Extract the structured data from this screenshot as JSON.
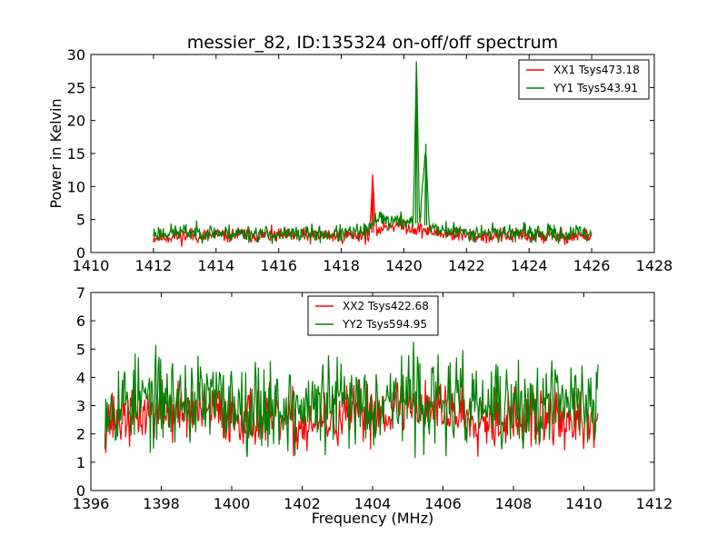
{
  "chart_data": [
    {
      "type": "line",
      "title": "messier_82, ID:135324 on-off/off spectrum",
      "xlabel": "",
      "ylabel": "Power in Kelvin",
      "xlim": [
        1410,
        1428
      ],
      "ylim": [
        0,
        30
      ],
      "x_ticks": [
        "1410",
        "1412",
        "1414",
        "1416",
        "1418",
        "1420",
        "1422",
        "1424",
        "1426",
        "1428"
      ],
      "y_ticks": [
        "0",
        "5",
        "10",
        "15",
        "20",
        "25",
        "30"
      ],
      "legend_position": "top-right",
      "x_range": [
        1412.0,
        1426.0
      ],
      "series": [
        {
          "name": "XX1 Tsys473.18",
          "color": "#ff0000",
          "noise": 0.9,
          "seed": 11,
          "points": [
            [
              1412.0,
              2.3
            ],
            [
              1413.0,
              2.5
            ],
            [
              1414.0,
              2.6
            ],
            [
              1415.0,
              2.7
            ],
            [
              1416.0,
              2.5
            ],
            [
              1417.0,
              2.5
            ],
            [
              1418.0,
              2.6
            ],
            [
              1418.9,
              2.7
            ],
            [
              1419.0,
              10.9
            ],
            [
              1419.1,
              3.3
            ],
            [
              1419.5,
              4.1
            ],
            [
              1420.0,
              4.2
            ],
            [
              1420.3,
              3.6
            ],
            [
              1420.6,
              3.4
            ],
            [
              1421.0,
              3.0
            ],
            [
              1422.0,
              2.6
            ],
            [
              1423.0,
              2.5
            ],
            [
              1424.0,
              2.5
            ],
            [
              1425.0,
              2.4
            ],
            [
              1426.0,
              2.6
            ]
          ]
        },
        {
          "name": "YY1 Tsys543.91",
          "color": "#008000",
          "noise": 1.0,
          "seed": 23,
          "points": [
            [
              1412.0,
              2.9
            ],
            [
              1413.0,
              3.1
            ],
            [
              1414.0,
              3.0
            ],
            [
              1415.0,
              2.9
            ],
            [
              1416.0,
              2.7
            ],
            [
              1417.0,
              2.8
            ],
            [
              1418.0,
              2.8
            ],
            [
              1418.9,
              3.3
            ],
            [
              1419.2,
              5.8
            ],
            [
              1419.5,
              4.7
            ],
            [
              1420.0,
              4.8
            ],
            [
              1420.3,
              4.5
            ],
            [
              1420.4,
              28.8
            ],
            [
              1420.5,
              4.3
            ],
            [
              1420.7,
              16.5
            ],
            [
              1420.8,
              4.0
            ],
            [
              1421.0,
              3.6
            ],
            [
              1422.0,
              3.0
            ],
            [
              1423.0,
              3.1
            ],
            [
              1424.0,
              2.9
            ],
            [
              1425.0,
              2.8
            ],
            [
              1426.0,
              3.0
            ]
          ]
        }
      ]
    },
    {
      "type": "line",
      "title": "",
      "xlabel": "Frequency (MHz)",
      "ylabel": "",
      "xlim": [
        1396,
        1412
      ],
      "ylim": [
        0,
        7
      ],
      "x_ticks": [
        "1396",
        "1398",
        "1400",
        "1402",
        "1404",
        "1406",
        "1408",
        "1410",
        "1412"
      ],
      "y_ticks": [
        "0",
        "1",
        "2",
        "3",
        "4",
        "5",
        "6",
        "7"
      ],
      "legend_position": "top-center",
      "x_range": [
        1396.4,
        1410.4
      ],
      "series": [
        {
          "name": "XX2 Tsys422.68",
          "color": "#ff0000",
          "noise": 0.8,
          "seed": 37,
          "points": [
            [
              1396.4,
              2.5
            ],
            [
              1397.0,
              2.6
            ],
            [
              1398.0,
              2.8
            ],
            [
              1399.0,
              2.8
            ],
            [
              1400.0,
              2.7
            ],
            [
              1401.0,
              2.5
            ],
            [
              1402.0,
              2.3
            ],
            [
              1403.0,
              2.5
            ],
            [
              1404.0,
              2.8
            ],
            [
              1405.0,
              3.0
            ],
            [
              1406.0,
              2.9
            ],
            [
              1407.0,
              2.6
            ],
            [
              1408.0,
              2.5
            ],
            [
              1409.0,
              2.6
            ],
            [
              1410.0,
              2.3
            ],
            [
              1410.4,
              2.4
            ]
          ]
        },
        {
          "name": "YY2 Tsys594.95",
          "color": "#008000",
          "noise": 1.2,
          "seed": 53,
          "points": [
            [
              1396.4,
              3.1
            ],
            [
              1397.0,
              3.2
            ],
            [
              1398.0,
              3.2
            ],
            [
              1399.0,
              3.2
            ],
            [
              1400.0,
              3.1
            ],
            [
              1401.0,
              3.0
            ],
            [
              1402.0,
              2.9
            ],
            [
              1403.0,
              3.1
            ],
            [
              1404.0,
              3.2
            ],
            [
              1405.0,
              3.3
            ],
            [
              1406.0,
              3.1
            ],
            [
              1407.0,
              3.0
            ],
            [
              1408.0,
              2.9
            ],
            [
              1409.0,
              3.0
            ],
            [
              1410.0,
              3.3
            ],
            [
              1410.4,
              3.2
            ]
          ]
        }
      ]
    }
  ]
}
